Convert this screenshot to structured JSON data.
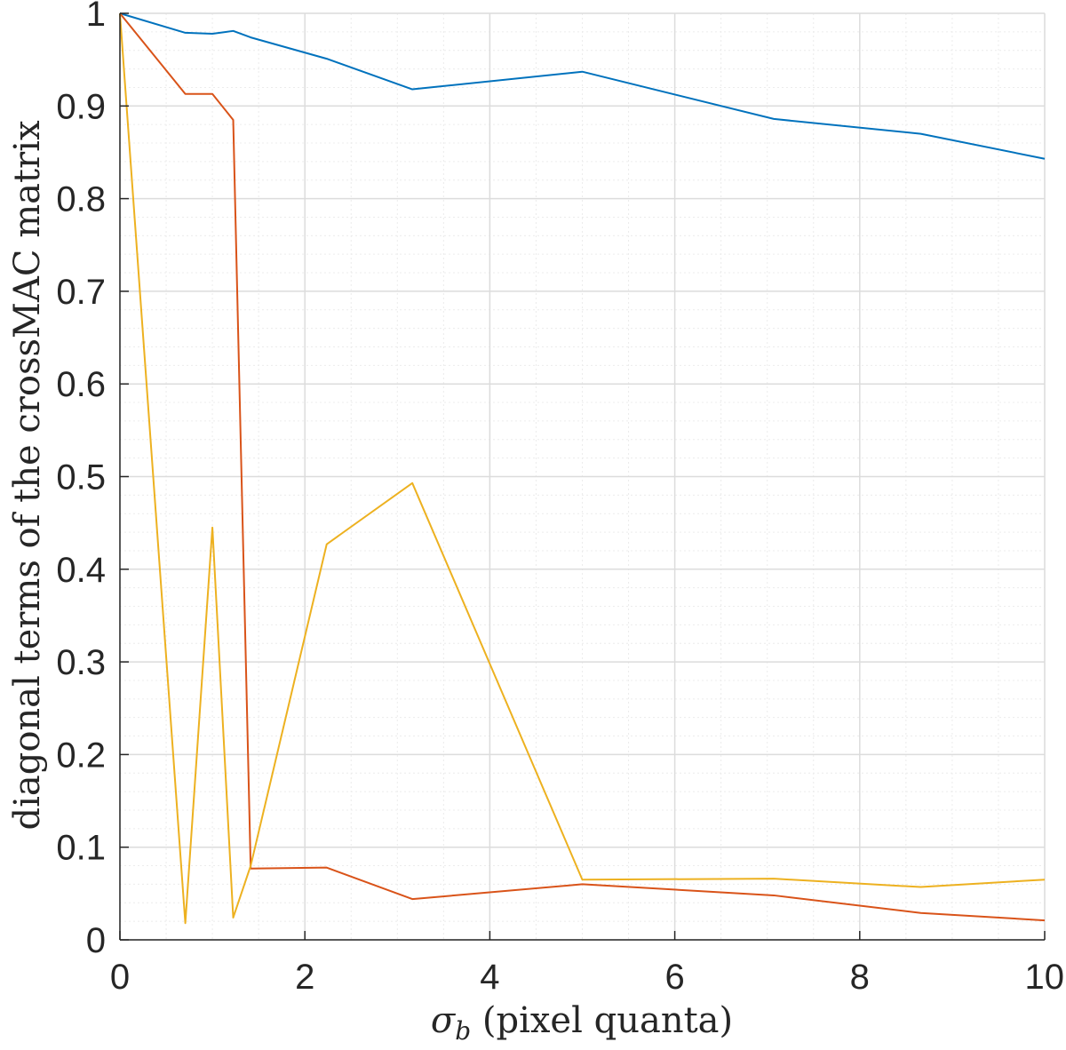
{
  "chart_data": {
    "type": "line",
    "title": "",
    "xlabel": {
      "symbol": "σ",
      "subscript": "b",
      "text": " (pixel quanta)"
    },
    "ylabel": "diagonal terms of the crossMAC matrix",
    "xlim": [
      0,
      10
    ],
    "ylim": [
      0,
      1
    ],
    "xticks": [
      "0",
      "2",
      "4",
      "6",
      "8",
      "10"
    ],
    "yticks": [
      "0",
      "0.1",
      "0.2",
      "0.3",
      "0.4",
      "0.5",
      "0.6",
      "0.7",
      "0.8",
      "0.9",
      "1"
    ],
    "grid": true,
    "minor_grid": true,
    "legend": "none",
    "series": [
      {
        "color": "#0072BD",
        "x": [
          0,
          0.707,
          1.0,
          1.225,
          1.414,
          2.236,
          3.162,
          5.0,
          7.071,
          8.66,
          10
        ],
        "y": [
          1.0,
          0.979,
          0.978,
          0.981,
          0.974,
          0.951,
          0.918,
          0.937,
          0.886,
          0.87,
          0.843
        ]
      },
      {
        "color": "#D95319",
        "x": [
          0,
          0.707,
          1.0,
          1.225,
          1.414,
          2.236,
          3.162,
          5.0,
          7.071,
          8.66,
          10
        ],
        "y": [
          1.0,
          0.913,
          0.913,
          0.885,
          0.077,
          0.078,
          0.044,
          0.06,
          0.048,
          0.029,
          0.021
        ]
      },
      {
        "color": "#EDB120",
        "x": [
          0,
          0.707,
          1.0,
          1.225,
          1.414,
          2.236,
          3.162,
          5.0,
          7.071,
          8.66,
          10
        ],
        "y": [
          1.0,
          0.018,
          0.445,
          0.024,
          0.08,
          0.427,
          0.493,
          0.065,
          0.066,
          0.057,
          0.065
        ]
      }
    ]
  }
}
